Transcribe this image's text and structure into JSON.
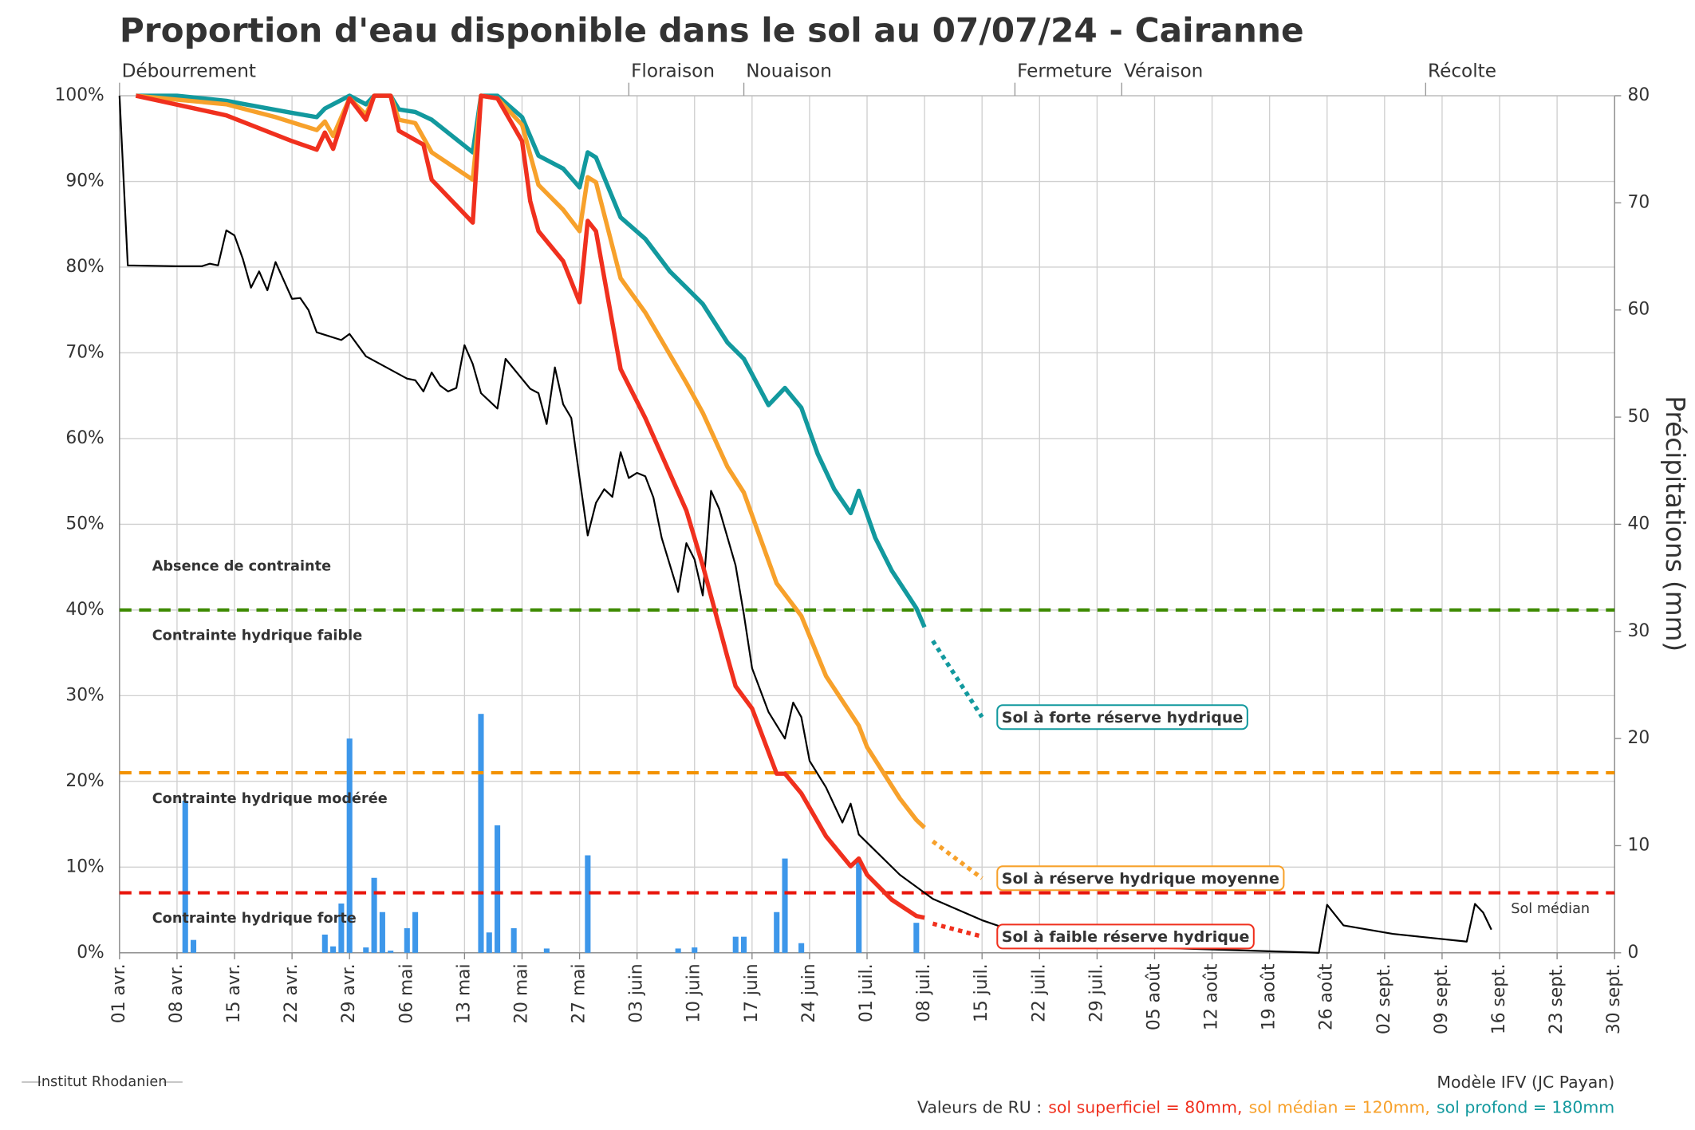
{
  "chart_data": {
    "type": "line",
    "title": "Proportion d'eau disponible dans le sol au 07/07/24 - Cairanne",
    "y2label": "Précipitations (mm)",
    "grid": true,
    "xlim": [
      0,
      182
    ],
    "xticks": [
      {
        "value": 0,
        "label": "01 avr."
      },
      {
        "value": 7,
        "label": "08 avr."
      },
      {
        "value": 14,
        "label": "15 avr."
      },
      {
        "value": 21,
        "label": "22 avr."
      },
      {
        "value": 28,
        "label": "29 avr."
      },
      {
        "value": 35,
        "label": "06 mai"
      },
      {
        "value": 42,
        "label": "13 mai"
      },
      {
        "value": 49,
        "label": "20 mai"
      },
      {
        "value": 56,
        "label": "27 mai"
      },
      {
        "value": 63,
        "label": "03 juin"
      },
      {
        "value": 70,
        "label": "10 juin"
      },
      {
        "value": 77,
        "label": "17 juin"
      },
      {
        "value": 84,
        "label": "24 juin"
      },
      {
        "value": 91,
        "label": "01 juil."
      },
      {
        "value": 98,
        "label": "08 juil."
      },
      {
        "value": 105,
        "label": "15 juil."
      },
      {
        "value": 112,
        "label": "22 juil."
      },
      {
        "value": 119,
        "label": "29 juil."
      },
      {
        "value": 126,
        "label": "05 août"
      },
      {
        "value": 133,
        "label": "12 août"
      },
      {
        "value": 140,
        "label": "19 août"
      },
      {
        "value": 147,
        "label": "26 août"
      },
      {
        "value": 154,
        "label": "02 sept."
      },
      {
        "value": 161,
        "label": "09 sept."
      },
      {
        "value": 168,
        "label": "16 sept."
      },
      {
        "value": 175,
        "label": "23 sept."
      },
      {
        "value": 182,
        "label": "30 sept."
      }
    ],
    "ylim": [
      0,
      100
    ],
    "yticks": [
      {
        "value": 0,
        "label": "0%"
      },
      {
        "value": 10,
        "label": "10%"
      },
      {
        "value": 20,
        "label": "20%"
      },
      {
        "value": 30,
        "label": "30%"
      },
      {
        "value": 40,
        "label": "40%"
      },
      {
        "value": 50,
        "label": "50%"
      },
      {
        "value": 60,
        "label": "60%"
      },
      {
        "value": 70,
        "label": "70%"
      },
      {
        "value": 80,
        "label": "80%"
      },
      {
        "value": 90,
        "label": "90%"
      },
      {
        "value": 100,
        "label": "100%"
      }
    ],
    "y2lim": [
      0,
      80
    ],
    "y2ticks": [
      0,
      10,
      20,
      30,
      40,
      50,
      60,
      70,
      80
    ],
    "stages": [
      {
        "name": "Débourrement",
        "x": 0
      },
      {
        "name": "Floraison",
        "x": 62
      },
      {
        "name": "Nouaison",
        "x": 76
      },
      {
        "name": "Fermeture",
        "x": 109
      },
      {
        "name": "Véraison",
        "x": 122
      },
      {
        "name": "Récolte",
        "x": 159
      }
    ],
    "thresholds": [
      {
        "value": 40,
        "color": "#3d8a00",
        "above": "Absence de contrainte",
        "above_color": "#12999e",
        "below": "Contrainte hydrique faible"
      },
      {
        "value": 21,
        "color": "#f39200",
        "below": "Contrainte hydrique modérée"
      },
      {
        "value": 7,
        "color": "#e8160c",
        "below": "Contrainte hydrique forte"
      }
    ],
    "series": [
      {
        "name": "Sol à faible réserve hydrique",
        "color": "#f0301e",
        "ru_text": "sol superficiel = 80mm,",
        "x": [
          2,
          13,
          21,
          24,
          25,
          26,
          28,
          30,
          31,
          33,
          34,
          37,
          38,
          43,
          44,
          46,
          49,
          50,
          51,
          54,
          56,
          57,
          58,
          61,
          64,
          69,
          71,
          74,
          75,
          77,
          80,
          81,
          83,
          86,
          89,
          90,
          91,
          94,
          97,
          98
        ],
        "values": [
          100,
          97.7,
          94.7,
          93.7,
          95.7,
          93.8,
          99.7,
          97.2,
          100,
          100,
          95.9,
          94.3,
          90.2,
          85.2,
          100,
          99.7,
          94.7,
          87.7,
          84.2,
          80.7,
          75.9,
          85.4,
          84.2,
          68.1,
          62.4,
          51.6,
          45.2,
          34.5,
          31.1,
          28.5,
          20.9,
          20.9,
          18.6,
          13.6,
          10.1,
          11,
          9.1,
          6.2,
          4.3,
          4.1
        ],
        "forecast_x": [
          99,
          105
        ],
        "forecast_values": [
          3.4,
          1.9
        ]
      },
      {
        "name": "Sol à réserve hydrique moyenne",
        "color": "#f7a12b",
        "ru_text": "sol médian = 120mm,",
        "x": [
          2,
          13,
          19,
          24,
          25,
          26,
          28,
          30,
          31,
          33,
          34,
          36,
          38,
          43,
          44,
          46,
          49,
          51,
          54,
          56,
          57,
          58,
          61,
          64,
          69,
          71,
          74,
          76,
          80,
          83,
          86,
          90,
          91,
          95,
          97,
          98
        ],
        "values": [
          100,
          99,
          97.5,
          96,
          97,
          95.3,
          99.7,
          97.8,
          100,
          100,
          97.2,
          96.8,
          93.4,
          90.2,
          100,
          99.7,
          96.6,
          89.6,
          86.7,
          84.2,
          90.5,
          89.9,
          78.7,
          74.7,
          66.5,
          63,
          56.7,
          53.7,
          43.1,
          39.3,
          32.3,
          26.5,
          24,
          18,
          15.5,
          14.6
        ],
        "forecast_x": [
          99,
          105
        ],
        "forecast_values": [
          13,
          8.7
        ]
      },
      {
        "name": "Sol à forte réserve hydrique",
        "color": "#12999e",
        "ru_text": "sol profond = 180mm",
        "x": [
          2,
          7,
          13,
          21,
          24,
          25,
          28,
          30,
          31,
          33,
          34,
          36,
          38,
          43,
          44,
          46,
          49,
          51,
          54,
          56,
          57,
          58,
          61,
          64,
          67,
          69,
          71,
          74,
          76,
          79,
          81,
          83,
          85,
          87,
          89,
          90,
          92,
          94,
          97,
          98
        ],
        "values": [
          100,
          100,
          99.4,
          98,
          97.5,
          98.5,
          100,
          99,
          100,
          100,
          98.4,
          98.1,
          97.2,
          93.4,
          100,
          100,
          97.5,
          93,
          91.5,
          89.3,
          93.4,
          92.8,
          85.8,
          83.3,
          79.5,
          77.6,
          75.7,
          71.2,
          69.3,
          63.9,
          65.9,
          63.6,
          58.2,
          54.1,
          51.3,
          53.9,
          48.4,
          44.6,
          40.2,
          38
        ],
        "forecast_x": [
          99,
          105
        ],
        "forecast_values": [
          36.4,
          27.5
        ]
      },
      {
        "name": "Sol médian",
        "color": "#000000",
        "x": [
          0,
          1,
          7,
          10,
          11,
          12,
          13,
          14,
          15,
          16,
          17,
          18,
          19,
          21,
          22,
          23,
          24,
          27,
          28,
          30,
          35,
          36,
          37,
          38,
          39,
          40,
          41,
          42,
          43,
          44,
          46,
          47,
          50,
          51,
          52,
          53,
          54,
          55,
          56,
          57,
          58,
          59,
          60,
          61,
          62,
          63,
          64,
          65,
          66,
          68,
          69,
          70,
          71,
          72,
          73,
          75,
          76,
          77,
          79,
          81,
          82,
          83,
          84,
          86,
          88,
          89,
          90,
          95,
          99,
          105,
          112,
          126,
          146,
          147,
          149,
          155,
          164,
          165,
          166,
          167
        ],
        "values": [
          100,
          80.2,
          80.1,
          80.1,
          80.4,
          80.2,
          84.3,
          83.7,
          81,
          77.6,
          79.5,
          77.3,
          80.6,
          76.3,
          76.4,
          75,
          72.4,
          71.5,
          72.2,
          69.6,
          67,
          66.8,
          65.5,
          67.7,
          66.2,
          65.5,
          65.9,
          70.9,
          68.7,
          65.3,
          63.5,
          69.3,
          65.8,
          65.3,
          61.7,
          68.3,
          64,
          62.4,
          55.4,
          48.7,
          52.5,
          54.1,
          53.2,
          58.4,
          55.4,
          56,
          55.6,
          53.1,
          48.4,
          42.1,
          47.8,
          45.9,
          41.7,
          53.9,
          51.8,
          45.2,
          39.5,
          33.2,
          28.1,
          25,
          29.2,
          27.5,
          22.4,
          19.3,
          15.2,
          17.4,
          13.8,
          9.1,
          6.3,
          3.8,
          1.5,
          0.6,
          0,
          5.6,
          3.2,
          2.2,
          1.3,
          5.7,
          4.7,
          2.7
        ]
      },
      {
        "type": "bar",
        "axis": "y2",
        "color": "#3d97ea",
        "x": [
          8,
          9,
          25,
          26,
          27,
          28,
          30,
          31,
          32,
          33,
          35,
          36,
          44,
          45,
          46,
          48,
          52,
          57,
          68,
          70,
          75,
          76,
          80,
          81,
          83,
          90,
          97
        ],
        "values": [
          14.2,
          1.2,
          1.7,
          0.6,
          4.6,
          20,
          0.5,
          7,
          3.8,
          0.2,
          2.3,
          3.8,
          22.3,
          1.9,
          11.9,
          2.3,
          0.4,
          9.1,
          0.4,
          0.5,
          1.5,
          1.5,
          3.8,
          8.8,
          0.9,
          8.6,
          2.8
        ]
      }
    ],
    "model_note": "Modèle IFV (JC Payan)",
    "ru_label": "Valeurs de RU :"
  },
  "logo": {
    "text": "Institut Rhodanien"
  }
}
